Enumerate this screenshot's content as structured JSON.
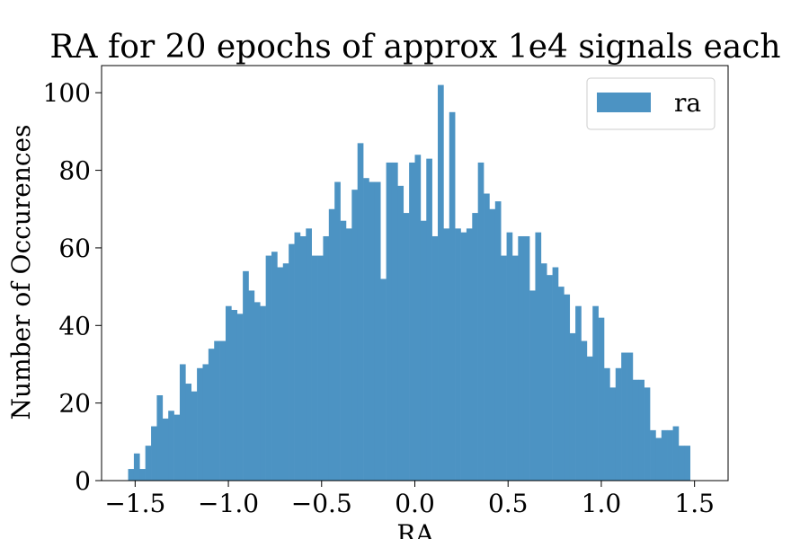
{
  "chart_data": {
    "type": "bar",
    "title": "RA for 20 epochs of approx 1e4 signals each",
    "xlabel": "RA",
    "ylabel": "Number of Occurences",
    "xlim": [
      -1.68,
      1.68
    ],
    "ylim": [
      0,
      107
    ],
    "xticks": [
      -1.5,
      -1.0,
      -0.5,
      0.0,
      0.5,
      1.0,
      1.5
    ],
    "xtick_labels": [
      "−1.5",
      "−1.0",
      "−0.5",
      "0.0",
      "0.5",
      "1.0",
      "1.5"
    ],
    "yticks": [
      0,
      20,
      40,
      60,
      80,
      100
    ],
    "ytick_labels": [
      "0",
      "20",
      "40",
      "60",
      "80",
      "100"
    ],
    "grid": false,
    "legend_position": "top-right",
    "bin_start": -1.5376,
    "bin_width": 0.030752,
    "series": [
      {
        "name": "ra",
        "color": "#4c93c3",
        "values": [
          3,
          7,
          3,
          9,
          14,
          22,
          16,
          18,
          17,
          30,
          25,
          23,
          29,
          30,
          34,
          36,
          36,
          45,
          44,
          43,
          54,
          49,
          46,
          45,
          58,
          59,
          55,
          56,
          61,
          64,
          63,
          65,
          58,
          58,
          63,
          70,
          77,
          67,
          65,
          75,
          87,
          78,
          77,
          77,
          52,
          82,
          82,
          76,
          69,
          82,
          84,
          67,
          83,
          63,
          102,
          65,
          95,
          65,
          64,
          65,
          69,
          82,
          74,
          70,
          72,
          58,
          64,
          58,
          63,
          63,
          49,
          64,
          56,
          53,
          55,
          50,
          48,
          38,
          45,
          36,
          32,
          45,
          42,
          29,
          24,
          29,
          33,
          33,
          26,
          26,
          24,
          13,
          11,
          13,
          13,
          14,
          9,
          9
        ]
      }
    ]
  }
}
